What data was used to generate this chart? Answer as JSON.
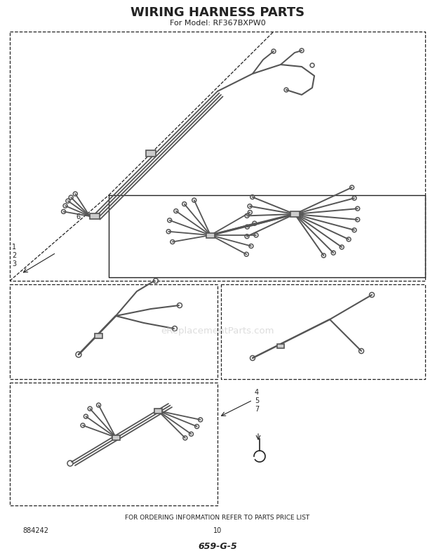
{
  "title": "WIRING HARNESS PARTS",
  "subtitle": "For Model: RF367BXPW0",
  "footer_text": "FOR ORDERING INFORMATION REFER TO PARTS PRICE LIST",
  "part_number_left": "884242",
  "page_number": "10",
  "doc_number": "659-G-5",
  "background_color": "#ffffff",
  "line_color": "#222222",
  "wire_color": "#555555",
  "watermark": "eReplacementParts.com"
}
